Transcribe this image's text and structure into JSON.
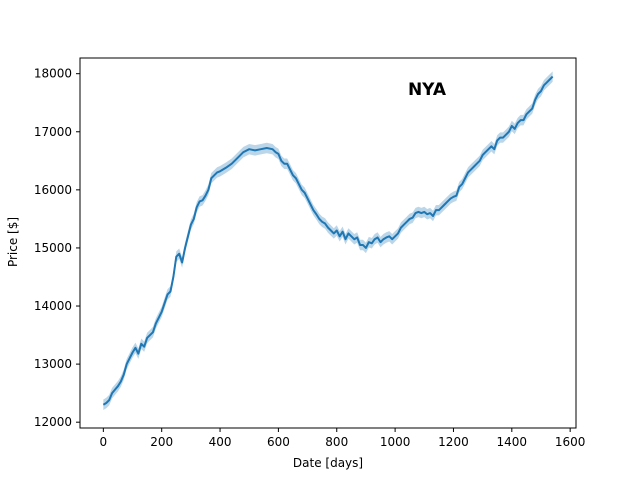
{
  "chart_data": {
    "type": "line",
    "annotation": "NYA",
    "xlabel": "Date [days]",
    "ylabel": "Price [$]",
    "xlim": [
      -80,
      1620
    ],
    "ylim": [
      11900,
      18270
    ],
    "x_ticks": [
      0,
      200,
      400,
      600,
      800,
      1000,
      1200,
      1400,
      1600
    ],
    "y_ticks": [
      12000,
      13000,
      14000,
      15000,
      16000,
      17000,
      18000
    ],
    "grid": false,
    "legend": "none",
    "series": [
      {
        "color": "#1f77b4",
        "band_color": "#1f77b4",
        "band_halfwidth": 90,
        "points": [
          [
            0,
            12300
          ],
          [
            10,
            12330
          ],
          [
            20,
            12380
          ],
          [
            30,
            12500
          ],
          [
            40,
            12560
          ],
          [
            50,
            12620
          ],
          [
            60,
            12700
          ],
          [
            70,
            12820
          ],
          [
            80,
            13000
          ],
          [
            90,
            13100
          ],
          [
            100,
            13200
          ],
          [
            110,
            13280
          ],
          [
            120,
            13180
          ],
          [
            130,
            13350
          ],
          [
            140,
            13300
          ],
          [
            150,
            13450
          ],
          [
            160,
            13500
          ],
          [
            170,
            13550
          ],
          [
            180,
            13700
          ],
          [
            190,
            13800
          ],
          [
            200,
            13900
          ],
          [
            210,
            14050
          ],
          [
            220,
            14200
          ],
          [
            230,
            14250
          ],
          [
            240,
            14500
          ],
          [
            250,
            14850
          ],
          [
            260,
            14900
          ],
          [
            270,
            14750
          ],
          [
            280,
            15000
          ],
          [
            290,
            15200
          ],
          [
            300,
            15400
          ],
          [
            310,
            15500
          ],
          [
            320,
            15700
          ],
          [
            330,
            15800
          ],
          [
            340,
            15820
          ],
          [
            350,
            15900
          ],
          [
            360,
            16000
          ],
          [
            370,
            16200
          ],
          [
            380,
            16250
          ],
          [
            390,
            16300
          ],
          [
            400,
            16320
          ],
          [
            420,
            16380
          ],
          [
            440,
            16450
          ],
          [
            460,
            16550
          ],
          [
            480,
            16650
          ],
          [
            500,
            16700
          ],
          [
            520,
            16680
          ],
          [
            540,
            16700
          ],
          [
            560,
            16720
          ],
          [
            580,
            16700
          ],
          [
            590,
            16650
          ],
          [
            600,
            16620
          ],
          [
            610,
            16500
          ],
          [
            620,
            16450
          ],
          [
            630,
            16450
          ],
          [
            640,
            16350
          ],
          [
            650,
            16250
          ],
          [
            660,
            16200
          ],
          [
            670,
            16100
          ],
          [
            680,
            16000
          ],
          [
            690,
            15950
          ],
          [
            700,
            15850
          ],
          [
            710,
            15750
          ],
          [
            720,
            15650
          ],
          [
            730,
            15580
          ],
          [
            740,
            15500
          ],
          [
            750,
            15450
          ],
          [
            760,
            15420
          ],
          [
            770,
            15350
          ],
          [
            780,
            15300
          ],
          [
            790,
            15250
          ],
          [
            800,
            15300
          ],
          [
            810,
            15200
          ],
          [
            820,
            15280
          ],
          [
            830,
            15150
          ],
          [
            840,
            15250
          ],
          [
            850,
            15200
          ],
          [
            860,
            15150
          ],
          [
            870,
            15180
          ],
          [
            880,
            15050
          ],
          [
            890,
            15050
          ],
          [
            900,
            15000
          ],
          [
            910,
            15100
          ],
          [
            920,
            15080
          ],
          [
            930,
            15150
          ],
          [
            940,
            15180
          ],
          [
            950,
            15100
          ],
          [
            960,
            15150
          ],
          [
            970,
            15180
          ],
          [
            980,
            15200
          ],
          [
            990,
            15150
          ],
          [
            1000,
            15200
          ],
          [
            1010,
            15250
          ],
          [
            1020,
            15350
          ],
          [
            1030,
            15400
          ],
          [
            1040,
            15450
          ],
          [
            1050,
            15500
          ],
          [
            1060,
            15520
          ],
          [
            1070,
            15600
          ],
          [
            1080,
            15620
          ],
          [
            1090,
            15600
          ],
          [
            1100,
            15620
          ],
          [
            1110,
            15580
          ],
          [
            1120,
            15600
          ],
          [
            1130,
            15550
          ],
          [
            1140,
            15650
          ],
          [
            1150,
            15650
          ],
          [
            1160,
            15700
          ],
          [
            1170,
            15750
          ],
          [
            1180,
            15800
          ],
          [
            1190,
            15850
          ],
          [
            1200,
            15880
          ],
          [
            1210,
            15900
          ],
          [
            1220,
            16050
          ],
          [
            1230,
            16100
          ],
          [
            1240,
            16200
          ],
          [
            1250,
            16300
          ],
          [
            1260,
            16350
          ],
          [
            1270,
            16400
          ],
          [
            1280,
            16450
          ],
          [
            1290,
            16500
          ],
          [
            1300,
            16600
          ],
          [
            1310,
            16650
          ],
          [
            1320,
            16700
          ],
          [
            1330,
            16750
          ],
          [
            1340,
            16700
          ],
          [
            1350,
            16850
          ],
          [
            1360,
            16900
          ],
          [
            1370,
            16900
          ],
          [
            1380,
            16950
          ],
          [
            1390,
            17000
          ],
          [
            1400,
            17100
          ],
          [
            1410,
            17050
          ],
          [
            1420,
            17150
          ],
          [
            1430,
            17200
          ],
          [
            1440,
            17200
          ],
          [
            1450,
            17300
          ],
          [
            1460,
            17350
          ],
          [
            1470,
            17400
          ],
          [
            1480,
            17550
          ],
          [
            1490,
            17650
          ],
          [
            1500,
            17700
          ],
          [
            1510,
            17800
          ],
          [
            1520,
            17850
          ],
          [
            1530,
            17900
          ],
          [
            1540,
            17950
          ]
        ]
      }
    ]
  }
}
